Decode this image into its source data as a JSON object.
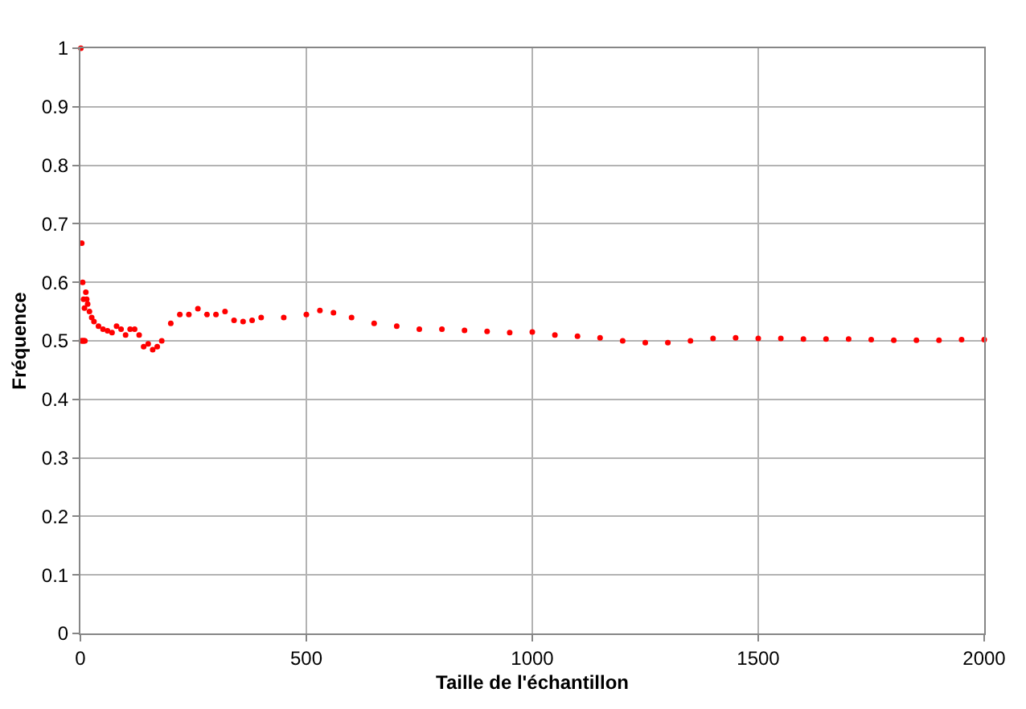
{
  "chart_data": {
    "type": "scatter",
    "xlabel": "Taille de l'échantillon",
    "ylabel": "Fréquence",
    "x": [
      1,
      2,
      3,
      4,
      5,
      6,
      7,
      8,
      9,
      10,
      12,
      14,
      16,
      20,
      25,
      30,
      40,
      50,
      60,
      70,
      80,
      90,
      100,
      110,
      120,
      130,
      140,
      150,
      160,
      170,
      180,
      200,
      220,
      240,
      260,
      280,
      300,
      320,
      340,
      360,
      380,
      400,
      450,
      500,
      530,
      560,
      600,
      650,
      700,
      750,
      800,
      850,
      900,
      950,
      1000,
      1050,
      1100,
      1150,
      1200,
      1250,
      1300,
      1350,
      1400,
      1450,
      1500,
      1550,
      1600,
      1650,
      1700,
      1750,
      1800,
      1850,
      1900,
      1950,
      2000
    ],
    "series": [
      {
        "color": "#ff0000",
        "values": [
          1,
          0.5,
          0.667,
          0.5,
          0.6,
          0.5,
          0.571,
          0.5,
          0.556,
          0.5,
          0.583,
          0.571,
          0.563,
          0.55,
          0.54,
          0.533,
          0.525,
          0.52,
          0.517,
          0.514,
          0.525,
          0.52,
          0.51,
          0.52,
          0.52,
          0.51,
          0.49,
          0.495,
          0.485,
          0.49,
          0.5,
          0.53,
          0.545,
          0.545,
          0.555,
          0.545,
          0.545,
          0.55,
          0.535,
          0.533,
          0.535,
          0.54,
          0.54,
          0.545,
          0.552,
          0.548,
          0.54,
          0.53,
          0.525,
          0.52,
          0.52,
          0.518,
          0.516,
          0.514,
          0.515,
          0.51,
          0.508,
          0.505,
          0.5,
          0.497,
          0.497,
          0.5,
          0.504,
          0.505,
          0.504,
          0.504,
          0.503,
          0.503,
          0.503,
          0.502,
          0.501,
          0.501,
          0.501,
          0.502,
          0.502
        ]
      }
    ],
    "marker": "circle",
    "grid": true,
    "xlim": [
      0,
      2000
    ],
    "xticks": [
      0,
      500,
      1000,
      1500,
      2000
    ],
    "ylim": [
      0,
      1
    ],
    "yticks": [
      0,
      0.1,
      0.2,
      0.3,
      0.4,
      0.5,
      0.6,
      0.7,
      0.8,
      0.9,
      1
    ]
  }
}
